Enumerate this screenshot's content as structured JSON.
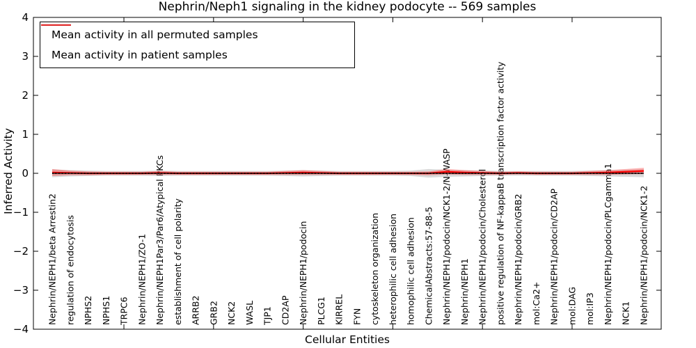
{
  "figure": {
    "title": "Nephrin/Neph1 signaling in the kidney podocyte -- 569 samples",
    "xlabel": "Cellular Entities",
    "ylabel": "Inferred Activity"
  },
  "legend": {
    "entries": [
      {
        "label": "Mean activity in all permuted samples",
        "color": "#000000"
      },
      {
        "label": "Mean activity in patient samples",
        "color": "#ff0000"
      }
    ]
  },
  "axes": {
    "y_tick_labels": [
      "4",
      "3",
      "2",
      "1",
      "0",
      "−1",
      "−2",
      "−3",
      "−4"
    ],
    "ylim": [
      -4,
      4
    ],
    "x_major_ticks": [
      5,
      10,
      15,
      20,
      25,
      30
    ]
  },
  "chart_data": {
    "type": "line",
    "title": "Nephrin/Neph1 signaling in the kidney podocyte -- 569 samples",
    "xlabel": "Cellular Entities",
    "ylabel": "Inferred Activity",
    "ylim": [
      -4,
      4
    ],
    "grid": false,
    "legend_position": "upper left",
    "categories": [
      "Nephrin/NEPH1/beta Arrestin2",
      "regulation of endocytosis",
      "NPHS2",
      "NPHS1",
      "TRPC6",
      "Nephrin/NEPH1/ZO-1",
      "Nephrin/NEPH1Par3/Par6/Atypical PKCs",
      "establishment of cell polarity",
      "ARRB2",
      "GRB2",
      "NCK2",
      "WASL",
      "TJP1",
      "CD2AP",
      "Nephrin/NEPH1/podocin",
      "PLCG1",
      "KIRREL",
      "FYN",
      "cytoskeleton organization",
      "heterophilic cell adhesion",
      "homophilic cell adhesion",
      "ChemicalAbstracts:57-88-5",
      "Nephrin/NEPH1/podocin/NCK1-2/N-WASP",
      "Nephrin/NEPH1",
      "Nephrin/NEPH1/podocin/Cholesterol",
      "positive regulation of NF-kappaB transcription factor activity",
      "Nephrin/NEPH1/podocin/GRB2",
      "mol:Ca2+",
      "Nephrin/NEPH1/podocin/CD2AP",
      "mol:DAG",
      "mol:IP3",
      "Nephrin/NEPH1/podocin/PLCgamma1",
      "NCK1",
      "Nephrin/NEPH1/podocin/NCK1-2"
    ],
    "x": [
      1,
      2,
      3,
      4,
      5,
      6,
      7,
      8,
      9,
      10,
      11,
      12,
      13,
      14,
      15,
      16,
      17,
      18,
      19,
      20,
      21,
      22,
      23,
      24,
      25,
      26,
      27,
      28,
      29,
      30,
      31,
      32,
      33,
      34
    ],
    "series": [
      {
        "name": "Mean activity in all permuted samples",
        "color": "#000000",
        "style": "solid with dotted overlay",
        "values": [
          0,
          0,
          0,
          0,
          0,
          0,
          0,
          0,
          0,
          0,
          0,
          0,
          0,
          0,
          0,
          0,
          0,
          0,
          0,
          0,
          0,
          0,
          0,
          0,
          0,
          0,
          0,
          0,
          0,
          0,
          0,
          0,
          0,
          0
        ]
      },
      {
        "name": "Mean activity in patient samples",
        "color": "#ff0000",
        "style": "solid",
        "values": [
          0.02,
          0.01,
          0,
          0,
          0,
          0,
          0.01,
          0,
          0,
          0,
          0,
          0,
          0,
          0.01,
          0.02,
          0.01,
          0,
          0,
          0,
          0,
          0,
          0,
          0.04,
          0.02,
          0.01,
          0,
          0.01,
          0,
          0,
          0,
          0.01,
          0.02,
          0.04,
          0.06
        ]
      }
    ],
    "bands": [
      {
        "name": "permuted samples spread",
        "color": "#aaaaaa",
        "alpha": 0.45,
        "half_widths": [
          0.1,
          0.08,
          0.07,
          0.06,
          0.06,
          0.06,
          0.07,
          0.06,
          0.06,
          0.06,
          0.06,
          0.06,
          0.06,
          0.07,
          0.08,
          0.07,
          0.06,
          0.06,
          0.06,
          0.06,
          0.07,
          0.11,
          0.09,
          0.08,
          0.07,
          0.06,
          0.06,
          0.06,
          0.06,
          0.06,
          0.07,
          0.08,
          0.09,
          0.1
        ]
      },
      {
        "name": "patient samples spread",
        "color": "#ff0000",
        "alpha": 0.3,
        "half_widths": [
          0.09,
          0.06,
          0.05,
          0.04,
          0.04,
          0.04,
          0.05,
          0.04,
          0.04,
          0.04,
          0.04,
          0.04,
          0.04,
          0.05,
          0.06,
          0.05,
          0.04,
          0.04,
          0.04,
          0.04,
          0.04,
          0.05,
          0.07,
          0.06,
          0.05,
          0.04,
          0.04,
          0.04,
          0.04,
          0.04,
          0.05,
          0.06,
          0.07,
          0.08
        ]
      }
    ]
  }
}
